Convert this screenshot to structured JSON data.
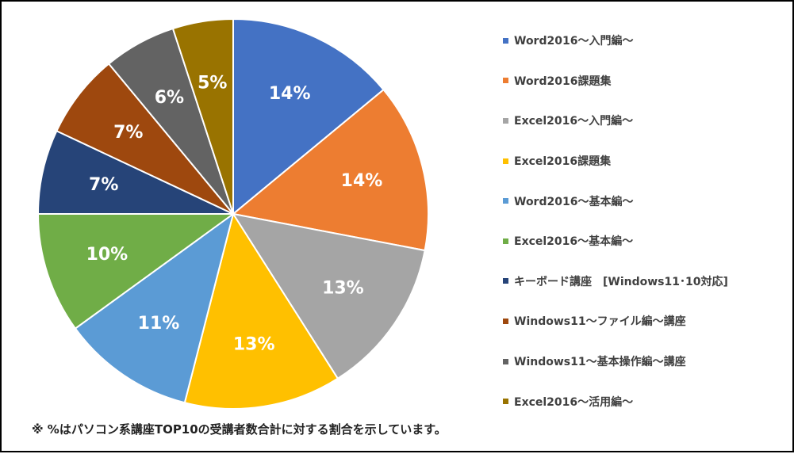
{
  "chart_data": {
    "type": "pie",
    "slices": [
      {
        "label": "Word2016～入門編～",
        "percent": 14,
        "display": "14%",
        "color": "#4472C4"
      },
      {
        "label": "Word2016課題集",
        "percent": 14,
        "display": "14%",
        "color": "#ED7D31"
      },
      {
        "label": "Excel2016～入門編～",
        "percent": 13,
        "display": "13%",
        "color": "#A5A5A5"
      },
      {
        "label": "Excel2016課題集",
        "percent": 13,
        "display": "13%",
        "color": "#FFC000"
      },
      {
        "label": "Word2016～基本編～",
        "percent": 11,
        "display": "11%",
        "color": "#5B9BD5"
      },
      {
        "label": "Excel2016～基本編～",
        "percent": 10,
        "display": "10%",
        "color": "#70AD47"
      },
      {
        "label": "キーボード講座　[Windows11･10対応]",
        "percent": 7,
        "display": "7%",
        "color": "#264478"
      },
      {
        "label": "Windows11～ファイル編～講座",
        "percent": 7,
        "display": "7%",
        "color": "#9E480E"
      },
      {
        "label": "Windows11～基本操作編～講座",
        "percent": 6,
        "display": "6%",
        "color": "#636363"
      },
      {
        "label": "Excel2016～活用編～",
        "percent": 5,
        "display": "5%",
        "color": "#997300"
      }
    ],
    "legend_position": "right"
  },
  "footnote": "※ %はパソコン系講座TOP10の受講者数合計に対する割合を示しています。"
}
